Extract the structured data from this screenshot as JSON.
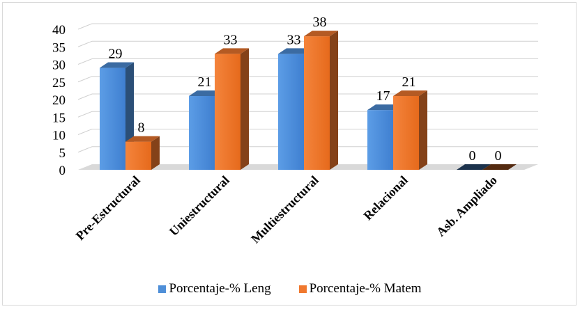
{
  "chart_data": {
    "type": "bar",
    "categories": [
      "Pre-Estructural",
      "Uniestructural",
      "Multiestructural",
      "Relacional",
      "Asb. Ampliado"
    ],
    "series": [
      {
        "name": "Porcentaje-% Leng",
        "values": [
          29,
          21,
          33,
          17,
          0
        ],
        "color": "#4f8fd8"
      },
      {
        "name": "Porcentaje-% Matem",
        "values": [
          8,
          33,
          38,
          21,
          0
        ],
        "color": "#f0782e"
      }
    ],
    "ylim": [
      0,
      40
    ],
    "yticks": [
      "0",
      "5",
      "10",
      "15",
      "20",
      "25",
      "30",
      "35",
      "40"
    ],
    "grid": true,
    "legend_position": "bottom",
    "style": "3d-column"
  }
}
